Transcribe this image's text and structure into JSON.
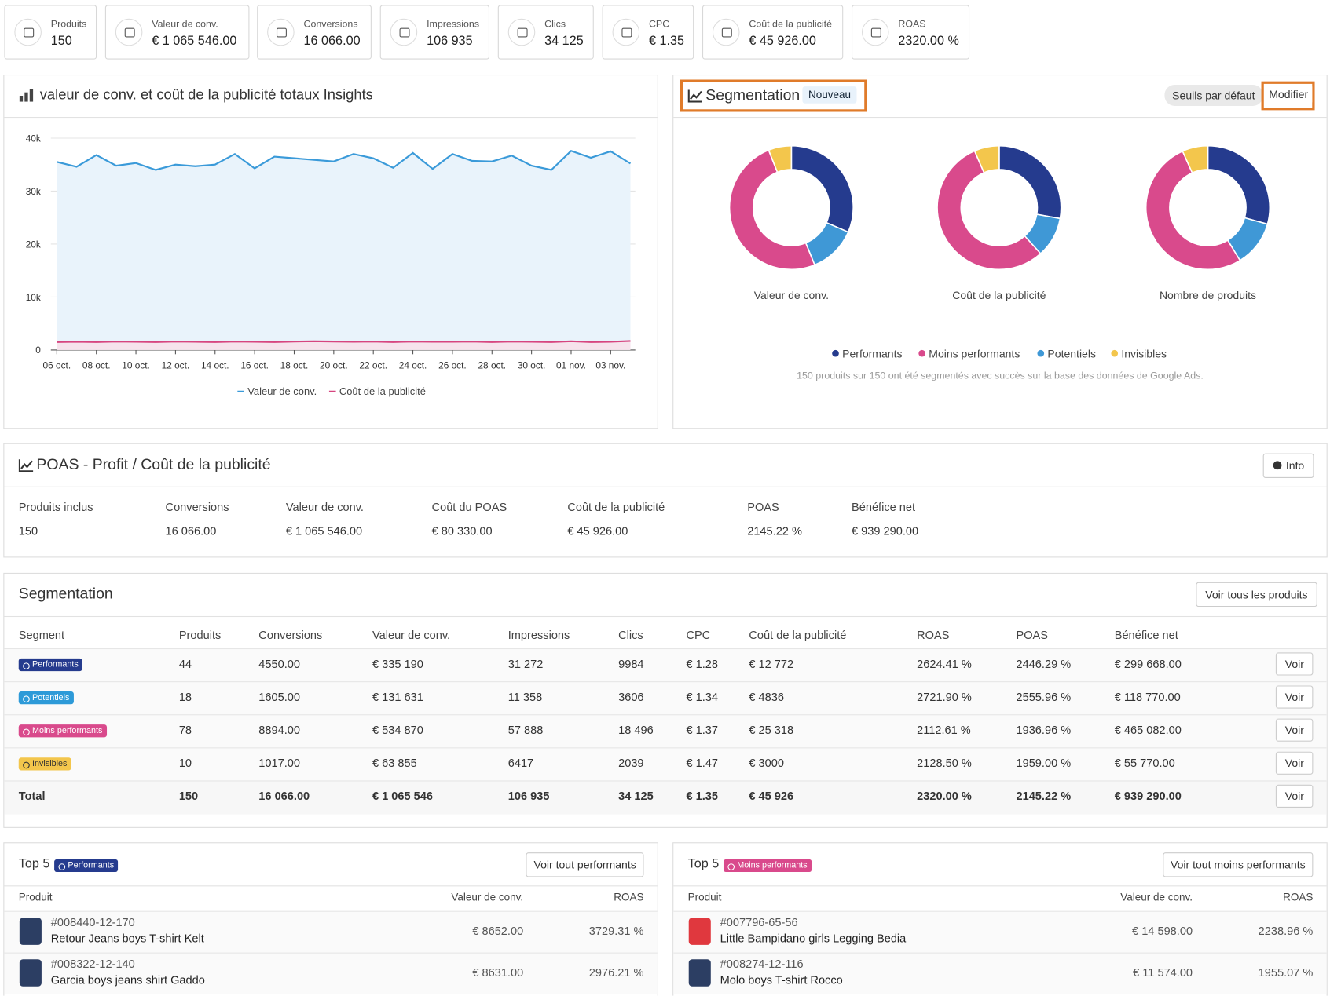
{
  "kpis": [
    {
      "label": "Produits",
      "value": "150"
    },
    {
      "label": "Valeur de conv.",
      "value": "€ 1 065 546.00"
    },
    {
      "label": "Conversions",
      "value": "16 066.00"
    },
    {
      "label": "Impressions",
      "value": "106 935"
    },
    {
      "label": "Clics",
      "value": "34 125"
    },
    {
      "label": "CPC",
      "value": "€ 1.35"
    },
    {
      "label": "Coût de la publicité",
      "value": "€ 45 926.00"
    },
    {
      "label": "ROAS",
      "value": "2320.00 %"
    }
  ],
  "chart_data": [
    {
      "type": "line",
      "title": "valeur de conv. et coût de la publicité totaux Insights",
      "categories": [
        "06 oct.",
        null,
        "08 oct.",
        null,
        "10 oct.",
        null,
        "12 oct.",
        null,
        "14 oct.",
        null,
        "16 oct.",
        null,
        "18 oct.",
        null,
        "20 oct.",
        null,
        "22 oct.",
        null,
        "24 oct.",
        null,
        "26 oct.",
        null,
        "28 oct.",
        null,
        "30 oct.",
        null,
        "01 nov.",
        null,
        "03 nov.",
        null
      ],
      "series": [
        {
          "name": "Valeur de conv.",
          "color": "#3a9ad9",
          "values": [
            35500,
            34600,
            36800,
            34800,
            35300,
            34000,
            35000,
            34700,
            35000,
            37000,
            34300,
            36500,
            36200,
            35900,
            35600,
            37000,
            36200,
            34400,
            37200,
            34200,
            37000,
            35700,
            35600,
            36700,
            34800,
            34000,
            37600,
            36300,
            37500,
            35200
          ]
        },
        {
          "name": "Coût de la publicité",
          "color": "#d6457f",
          "values": [
            1500,
            1550,
            1500,
            1600,
            1550,
            1500,
            1600,
            1550,
            1500,
            1600,
            1550,
            1500,
            1600,
            1650,
            1600,
            1550,
            1600,
            1500,
            1600,
            1550,
            1550,
            1600,
            1500,
            1600,
            1550,
            1500,
            1650,
            1500,
            1550,
            1700
          ]
        }
      ],
      "ylim": [
        0,
        40000
      ],
      "yticks": [
        0,
        {
          "value": 10000,
          "label": "10k"
        },
        {
          "value": 20000,
          "label": "20k"
        },
        {
          "value": 30000,
          "label": "30k"
        },
        {
          "value": 40000,
          "label": "40k"
        }
      ],
      "grid": true
    },
    {
      "type": "pie",
      "title": "Valeur de conv.",
      "categories": [
        "Performants",
        "Moins performants",
        "Potentiels",
        "Invisibles"
      ],
      "colors": [
        "#253b8e",
        "#d94a8c",
        "#3f98d6",
        "#f3c64c"
      ],
      "values": [
        31.5,
        50.2,
        12.4,
        6.0
      ]
    },
    {
      "type": "pie",
      "title": "Coût de la publicité",
      "categories": [
        "Performants",
        "Moins performants",
        "Potentiels",
        "Invisibles"
      ],
      "colors": [
        "#253b8e",
        "#d94a8c",
        "#3f98d6",
        "#f3c64c"
      ],
      "values": [
        27.8,
        55.1,
        10.5,
        6.5
      ]
    },
    {
      "type": "pie",
      "title": "Nombre de produits",
      "categories": [
        "Performants",
        "Moins performants",
        "Potentiels",
        "Invisibles"
      ],
      "colors": [
        "#253b8e",
        "#d94a8c",
        "#3f98d6",
        "#f3c64c"
      ],
      "values": [
        29.3,
        52.0,
        12.0,
        6.7
      ]
    }
  ],
  "segmentation_panel": {
    "title": "Segmentation",
    "badge": "Nouveau",
    "buttons": [
      "Seuils par défaut",
      "Modifier"
    ],
    "note": "150 produits sur 150 ont été segmentés avec succès sur la base des données de Google Ads."
  },
  "poas": {
    "title": "POAS - Profit / Coût de la publicité",
    "button": "Info",
    "columns": [
      {
        "label": "Produits inclus",
        "value": "150"
      },
      {
        "label": "Conversions",
        "value": "16 066.00"
      },
      {
        "label": "Valeur de conv.",
        "value": "€ 1 065 546.00"
      },
      {
        "label": "Coût du POAS",
        "value": "€ 80 330.00"
      },
      {
        "label": "Coût de la publicité",
        "value": "€ 45 926.00"
      },
      {
        "label": "POAS",
        "value": "2145.22 %"
      },
      {
        "label": "Bénéfice net",
        "value": "€ 939 290.00"
      }
    ]
  },
  "segment_table": {
    "title": "Segmentation",
    "button": "Voir tous les produits",
    "headers": [
      "Segment",
      "Produits",
      "Conversions",
      "Valeur de conv.",
      "Impressions",
      "Clics",
      "CPC",
      "Coût de la publicité",
      "ROAS",
      "POAS",
      "Bénéfice net"
    ],
    "rows": [
      {
        "badge": "Performants",
        "color": "#253b8e",
        "cells": [
          "44",
          "4550.00",
          "€ 335 190",
          "31 272",
          "9984",
          "€ 1.28",
          "€ 12 772",
          "2624.41 %",
          "2446.29 %",
          "€ 299 668.00"
        ],
        "action": "Voir"
      },
      {
        "badge": "Potentiels",
        "color": "#2d9ad8",
        "cells": [
          "18",
          "1605.00",
          "€ 131 631",
          "11 358",
          "3606",
          "€ 1.34",
          "€ 4836",
          "2721.90 %",
          "2555.96 %",
          "€ 118 770.00"
        ],
        "action": "Voir"
      },
      {
        "badge": "Moins performants",
        "color": "#d94a8c",
        "cells": [
          "78",
          "8894.00",
          "€ 534 870",
          "57 888",
          "18 496",
          "€ 1.37",
          "€ 25 318",
          "2112.61 %",
          "1936.96 %",
          "€ 465 082.00"
        ],
        "action": "Voir"
      },
      {
        "badge": "Invisibles",
        "color": "#f3c64c",
        "cells": [
          "10",
          "1017.00",
          "€ 63 855",
          "6417",
          "2039",
          "€ 1.47",
          "€ 3000",
          "2128.50 %",
          "1959.00 %",
          "€ 55 770.00"
        ],
        "action": "Voir"
      }
    ],
    "total": {
      "label": "Total",
      "cells": [
        "150",
        "16 066.00",
        "€ 1 065 546",
        "106 935",
        "34 125",
        "€ 1.35",
        "€ 45 926",
        "2320.00 %",
        "2145.22 %",
        "€ 939 290.00"
      ],
      "action": "Voir"
    }
  },
  "top5": [
    {
      "title": "Top 5",
      "badge": "Performants",
      "color": "#253b8e",
      "button": "Voir tout performants",
      "headers": [
        "Produit",
        "Valeur de conv.",
        "ROAS"
      ],
      "rows": [
        {
          "id": "#008440-12-170",
          "name": "Retour Jeans boys T-shirt Kelt",
          "value": "€ 8652.00",
          "roas": "3729.31 %"
        },
        {
          "id": "#008322-12-140",
          "name": "Garcia boys jeans shirt Gaddo",
          "value": "€ 8631.00",
          "roas": "2976.21 %"
        }
      ]
    },
    {
      "title": "Top 5",
      "badge": "Moins performants",
      "color": "#d94a8c",
      "button": "Voir tout moins performants",
      "headers": [
        "Produit",
        "Valeur de conv.",
        "ROAS"
      ],
      "rows": [
        {
          "id": "#007796-65-56",
          "name": "Little Bampidano girls Legging Bedia",
          "value": "€ 14 598.00",
          "roas": "2238.96 %"
        },
        {
          "id": "#008274-12-116",
          "name": "Molo boys T-shirt Rocco",
          "value": "€ 11 574.00",
          "roas": "1955.07 %"
        }
      ]
    }
  ]
}
